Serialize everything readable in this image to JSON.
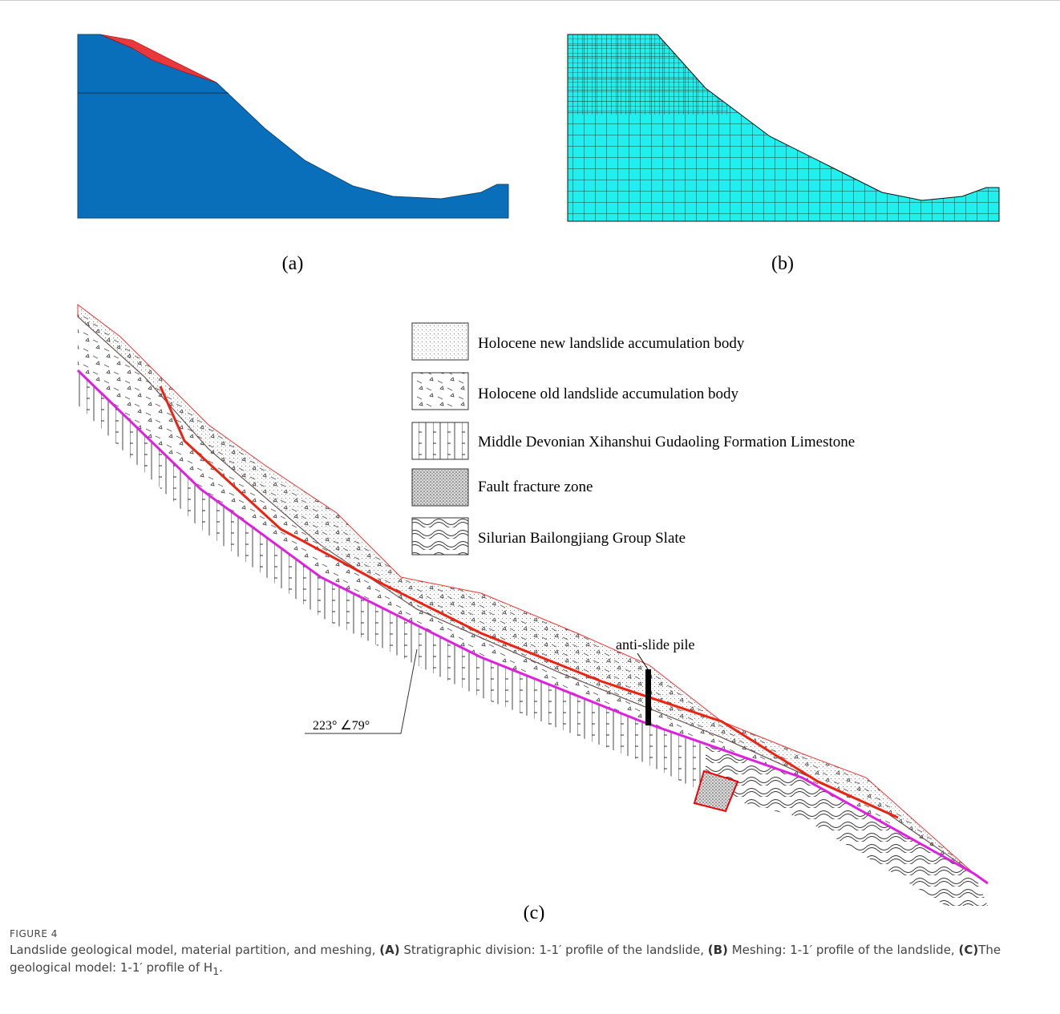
{
  "panel_labels": [
    "(a)",
    "(b)",
    "(c)"
  ],
  "legend": [
    "Holocene new landslide accumulation body",
    "Holocene old landslide accumulation body",
    "Middle Devonian Xihanshui Gudaoling Formation Limestone",
    "Fault fracture zone",
    "Silurian Bailongjiang Group Slate"
  ],
  "annotations": {
    "pile": "anti-slide pile",
    "orientation": "223°  ∠79°"
  },
  "figure_label": "FIGURE 4",
  "caption": [
    "Landslide geological model, material partition, and meshing, ",
    "(A)",
    " Stratigraphic division: 1-1′ profile of the landslide, ",
    "(B)",
    " Meshing: 1-1′ profile of the landslide, ",
    "(C)",
    "The geological model: 1-1′ profile of H",
    "1",
    "."
  ]
}
